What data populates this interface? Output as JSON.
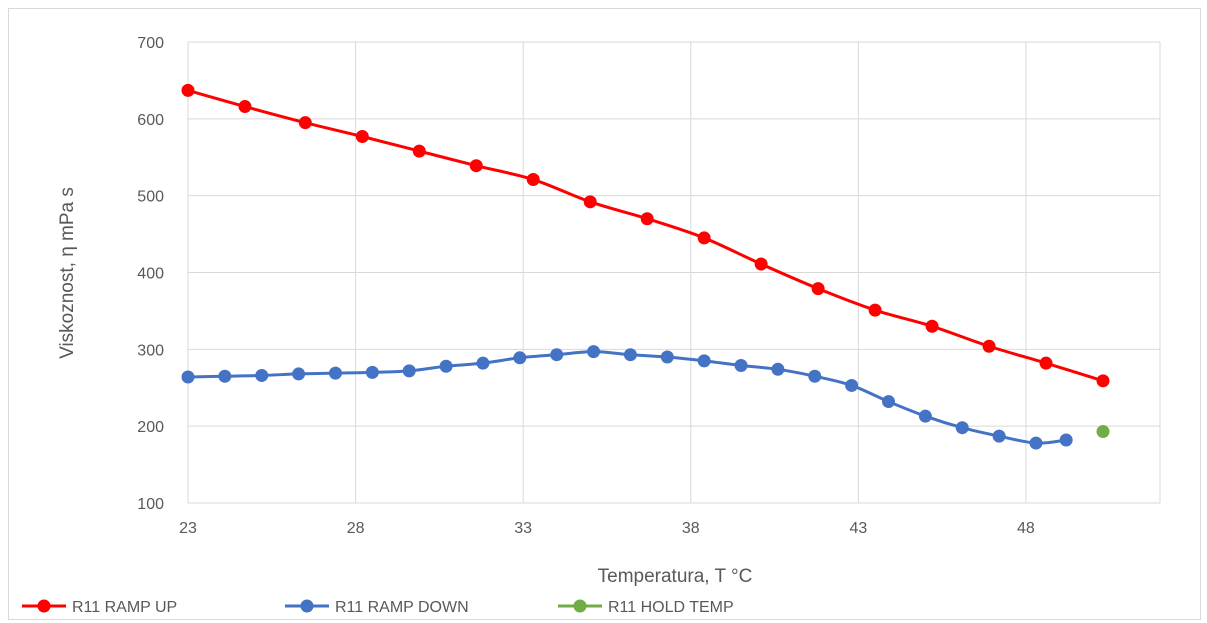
{
  "chart_data": {
    "type": "scatter",
    "title": "",
    "xlabel": "Temperatura, T °C",
    "ylabel": "Viskoznost, η mPa s",
    "xlim": [
      23,
      52
    ],
    "ylim": [
      100,
      700
    ],
    "x_ticks": [
      23,
      28,
      33,
      38,
      43,
      48
    ],
    "y_ticks": [
      100,
      200,
      300,
      400,
      500,
      600,
      700
    ],
    "grid": true,
    "legend_position": "bottom",
    "series": [
      {
        "name": "R11 RAMP UP",
        "color": "#ff0000",
        "x": [
          23.0,
          24.7,
          26.5,
          28.2,
          29.9,
          31.6,
          33.3,
          35.0,
          36.7,
          38.4,
          40.1,
          41.8,
          43.5,
          45.2,
          46.9,
          48.6,
          50.3
        ],
        "y": [
          637,
          616,
          595,
          577,
          558,
          539,
          521,
          492,
          470,
          445,
          411,
          379,
          351,
          330,
          304,
          282,
          259
        ]
      },
      {
        "name": "R11 RAMP DOWN",
        "color": "#4472c4",
        "x": [
          23.0,
          24.1,
          25.2,
          26.3,
          27.4,
          28.5,
          29.6,
          30.7,
          31.8,
          32.9,
          34.0,
          35.1,
          36.2,
          37.3,
          38.4,
          39.5,
          40.6,
          41.7,
          42.8,
          43.9,
          45.0,
          46.1,
          47.2,
          48.3,
          49.2
        ],
        "y": [
          264,
          265,
          266,
          268,
          269,
          270,
          272,
          278,
          282,
          289,
          293,
          297,
          293,
          290,
          285,
          279,
          274,
          265,
          253,
          232,
          213,
          198,
          187,
          178,
          182
        ]
      },
      {
        "name": "R11 HOLD TEMP",
        "color": "#70ad47",
        "x": [
          50.3
        ],
        "y": [
          193
        ]
      }
    ]
  }
}
